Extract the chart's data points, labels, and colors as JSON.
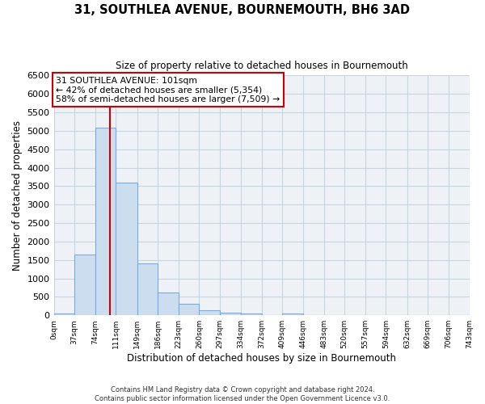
{
  "title": "31, SOUTHLEA AVENUE, BOURNEMOUTH, BH6 3AD",
  "subtitle": "Size of property relative to detached houses in Bournemouth",
  "xlabel": "Distribution of detached houses by size in Bournemouth",
  "ylabel": "Number of detached properties",
  "bar_color": "#ccddf0",
  "bar_edge_color": "#7aabe0",
  "bin_edges": [
    0,
    37,
    74,
    111,
    149,
    186,
    223,
    260,
    297,
    334,
    372,
    409,
    446,
    483,
    520,
    557,
    594,
    632,
    669,
    706,
    743
  ],
  "bar_heights": [
    50,
    1650,
    5080,
    3600,
    1400,
    620,
    310,
    145,
    80,
    50,
    0,
    55,
    0,
    0,
    0,
    0,
    0,
    0,
    0,
    0
  ],
  "property_size": 101,
  "vline_color": "#cc0000",
  "annotation_title": "31 SOUTHLEA AVENUE: 101sqm",
  "annotation_line1": "← 42% of detached houses are smaller (5,354)",
  "annotation_line2": "58% of semi-detached houses are larger (7,509) →",
  "annotation_box_facecolor": "#ffffff",
  "annotation_box_edgecolor": "#cc0000",
  "ylim": [
    0,
    6500
  ],
  "yticks": [
    0,
    500,
    1000,
    1500,
    2000,
    2500,
    3000,
    3500,
    4000,
    4500,
    5000,
    5500,
    6000,
    6500
  ],
  "grid_color": "#c8d4e0",
  "background_color": "#eef2f7",
  "footer1": "Contains HM Land Registry data © Crown copyright and database right 2024.",
  "footer2": "Contains public sector information licensed under the Open Government Licence v3.0.",
  "tick_labels": [
    "0sqm",
    "37sqm",
    "74sqm",
    "111sqm",
    "149sqm",
    "186sqm",
    "223sqm",
    "260sqm",
    "297sqm",
    "334sqm",
    "372sqm",
    "409sqm",
    "446sqm",
    "483sqm",
    "520sqm",
    "557sqm",
    "594sqm",
    "632sqm",
    "669sqm",
    "706sqm",
    "743sqm"
  ]
}
